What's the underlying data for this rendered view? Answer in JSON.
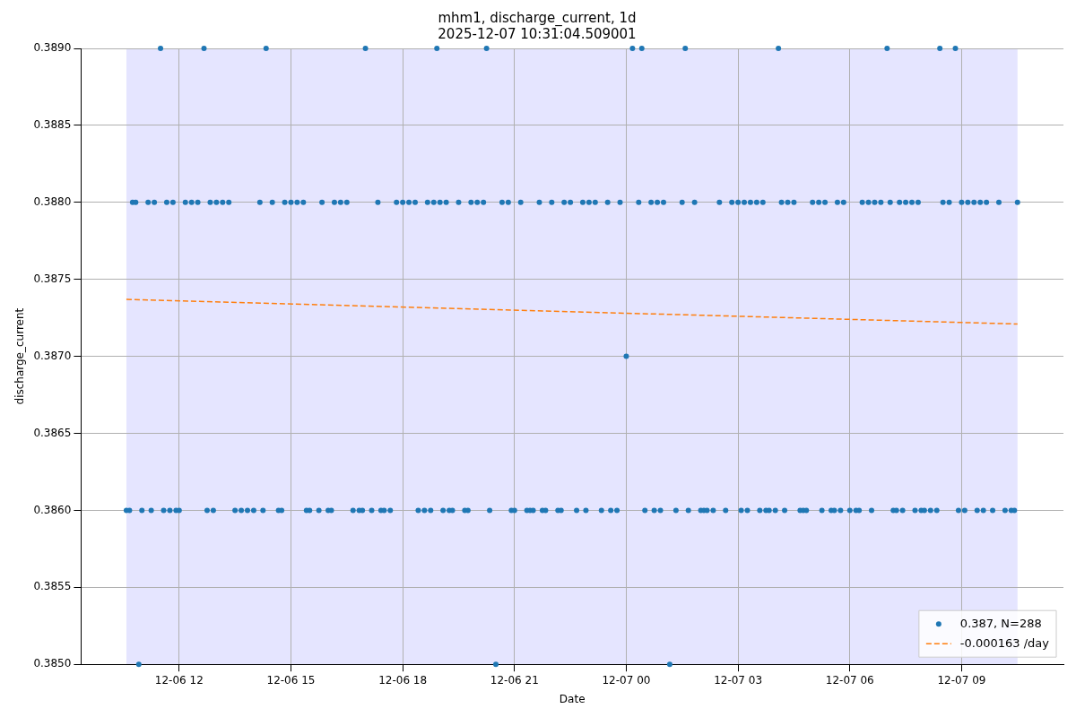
{
  "chart_data": {
    "type": "scatter",
    "title": "mhm1, discharge_current, 1d",
    "subtitle": "2025-12-07 10:31:04.509001",
    "xlabel": "Date",
    "ylabel": "discharge_current",
    "xlim": [
      "2025-12-06T09:22",
      "2025-12-07T11:44"
    ],
    "xticks": [
      {
        "value": "2025-12-06T12:00",
        "label": "12-06 12"
      },
      {
        "value": "2025-12-06T15:00",
        "label": "12-06 15"
      },
      {
        "value": "2025-12-06T18:00",
        "label": "12-06 18"
      },
      {
        "value": "2025-12-06T21:00",
        "label": "12-06 21"
      },
      {
        "value": "2025-12-07T00:00",
        "label": "12-07 00"
      },
      {
        "value": "2025-12-07T03:00",
        "label": "12-07 03"
      },
      {
        "value": "2025-12-07T06:00",
        "label": "12-07 06"
      },
      {
        "value": "2025-12-07T09:00",
        "label": "12-07 09"
      }
    ],
    "ylim": [
      0.385,
      0.389
    ],
    "yticks": [
      {
        "value": 0.385,
        "label": "0.3850"
      },
      {
        "value": 0.3855,
        "label": "0.3855"
      },
      {
        "value": 0.386,
        "label": "0.3860"
      },
      {
        "value": 0.3865,
        "label": "0.3865"
      },
      {
        "value": 0.387,
        "label": "0.3870"
      },
      {
        "value": 0.3875,
        "label": "0.3875"
      },
      {
        "value": 0.388,
        "label": "0.3880"
      },
      {
        "value": 0.3885,
        "label": "0.3885"
      },
      {
        "value": 0.389,
        "label": "0.3890"
      }
    ],
    "grid": true,
    "legend": "bottom right",
    "marker": "circle",
    "bands": [
      {
        "axis": "x",
        "from": "2025-12-06T10:35",
        "to": "2025-12-07T10:30",
        "color": "#e5e5ff"
      }
    ],
    "series": [
      {
        "name": "0.387, N=288",
        "color": "#1f77b4",
        "x": [
          "2025-12-06T11:30",
          "2025-12-06T12:40",
          "2025-12-06T14:20",
          "2025-12-06T17:00",
          "2025-12-06T18:55",
          "2025-12-06T20:15",
          "2025-12-07T00:10",
          "2025-12-07T00:25",
          "2025-12-07T01:35",
          "2025-12-07T04:05",
          "2025-12-07T07:00",
          "2025-12-07T08:25",
          "2025-12-07T08:50",
          "2025-12-06T10:55",
          "2025-12-06T20:30",
          "2025-12-07T01:10",
          "2025-12-07T00:00",
          "2025-12-06T10:35",
          "2025-12-06T10:40",
          "2025-12-06T11:00",
          "2025-12-06T11:15",
          "2025-12-06T11:35",
          "2025-12-06T11:45",
          "2025-12-06T11:55",
          "2025-12-06T12:00",
          "2025-12-06T12:45",
          "2025-12-06T12:55",
          "2025-12-06T13:30",
          "2025-12-06T13:40",
          "2025-12-06T13:50",
          "2025-12-06T14:00",
          "2025-12-06T14:15",
          "2025-12-06T14:40",
          "2025-12-06T14:45",
          "2025-12-06T15:25",
          "2025-12-06T15:30",
          "2025-12-06T15:45",
          "2025-12-06T16:00",
          "2025-12-06T16:05",
          "2025-12-06T16:40",
          "2025-12-06T16:50",
          "2025-12-06T16:55",
          "2025-12-06T17:10",
          "2025-12-06T17:25",
          "2025-12-06T17:30",
          "2025-12-06T17:40",
          "2025-12-06T18:25",
          "2025-12-06T18:35",
          "2025-12-06T18:45",
          "2025-12-06T19:05",
          "2025-12-06T19:15",
          "2025-12-06T19:20",
          "2025-12-06T19:40",
          "2025-12-06T19:45",
          "2025-12-06T20:20",
          "2025-12-06T20:55",
          "2025-12-06T21:00",
          "2025-12-06T21:20",
          "2025-12-06T21:25",
          "2025-12-06T21:30",
          "2025-12-06T21:45",
          "2025-12-06T21:50",
          "2025-12-06T22:10",
          "2025-12-06T22:15",
          "2025-12-06T22:40",
          "2025-12-06T22:55",
          "2025-12-06T23:20",
          "2025-12-06T23:35",
          "2025-12-06T23:45",
          "2025-12-07T00:30",
          "2025-12-07T00:45",
          "2025-12-07T00:55",
          "2025-12-07T01:20",
          "2025-12-07T01:40",
          "2025-12-07T02:00",
          "2025-12-07T02:05",
          "2025-12-07T02:10",
          "2025-12-07T02:20",
          "2025-12-07T02:40",
          "2025-12-07T03:05",
          "2025-12-07T03:15",
          "2025-12-07T03:35",
          "2025-12-07T03:45",
          "2025-12-07T03:50",
          "2025-12-07T04:00",
          "2025-12-07T04:15",
          "2025-12-07T04:40",
          "2025-12-07T04:45",
          "2025-12-07T04:50",
          "2025-12-07T05:15",
          "2025-12-07T05:30",
          "2025-12-07T05:35",
          "2025-12-07T05:45",
          "2025-12-07T06:00",
          "2025-12-07T06:10",
          "2025-12-07T06:15",
          "2025-12-07T06:35",
          "2025-12-07T07:10",
          "2025-12-07T07:15",
          "2025-12-07T07:25",
          "2025-12-07T07:45",
          "2025-12-07T07:55",
          "2025-12-07T08:00",
          "2025-12-07T08:10",
          "2025-12-07T08:20",
          "2025-12-07T08:55",
          "2025-12-07T09:05",
          "2025-12-07T09:25",
          "2025-12-07T09:35",
          "2025-12-07T09:50",
          "2025-12-07T10:10",
          "2025-12-07T10:20",
          "2025-12-07T10:25",
          "2025-12-06T10:45",
          "2025-12-06T10:50",
          "2025-12-06T11:10",
          "2025-12-06T11:20",
          "2025-12-06T11:40",
          "2025-12-06T11:50",
          "2025-12-06T12:10",
          "2025-12-06T12:20",
          "2025-12-06T12:30",
          "2025-12-06T12:50",
          "2025-12-06T13:00",
          "2025-12-06T13:10",
          "2025-12-06T13:20",
          "2025-12-06T14:10",
          "2025-12-06T14:30",
          "2025-12-06T14:50",
          "2025-12-06T15:00",
          "2025-12-06T15:10",
          "2025-12-06T15:20",
          "2025-12-06T15:50",
          "2025-12-06T16:10",
          "2025-12-06T16:20",
          "2025-12-06T16:30",
          "2025-12-06T17:20",
          "2025-12-06T17:50",
          "2025-12-06T18:00",
          "2025-12-06T18:10",
          "2025-12-06T18:20",
          "2025-12-06T18:40",
          "2025-12-06T18:50",
          "2025-12-06T19:00",
          "2025-12-06T19:10",
          "2025-12-06T19:30",
          "2025-12-06T19:50",
          "2025-12-06T20:00",
          "2025-12-06T20:10",
          "2025-12-06T20:40",
          "2025-12-06T20:50",
          "2025-12-06T21:10",
          "2025-12-06T21:40",
          "2025-12-06T22:00",
          "2025-12-06T22:20",
          "2025-12-06T22:30",
          "2025-12-06T22:50",
          "2025-12-06T23:00",
          "2025-12-06T23:10",
          "2025-12-06T23:30",
          "2025-12-06T23:50",
          "2025-12-07T00:20",
          "2025-12-07T00:40",
          "2025-12-07T00:50",
          "2025-12-07T01:00",
          "2025-12-07T01:30",
          "2025-12-07T01:50",
          "2025-12-07T02:30",
          "2025-12-07T02:50",
          "2025-12-07T03:00",
          "2025-12-07T03:10",
          "2025-12-07T03:20",
          "2025-12-07T03:30",
          "2025-12-07T03:40",
          "2025-12-07T04:10",
          "2025-12-07T04:20",
          "2025-12-07T04:30",
          "2025-12-07T05:00",
          "2025-12-07T05:10",
          "2025-12-07T05:20",
          "2025-12-07T05:40",
          "2025-12-07T05:50",
          "2025-12-07T06:20",
          "2025-12-07T06:30",
          "2025-12-07T06:40",
          "2025-12-07T06:50",
          "2025-12-07T07:05",
          "2025-12-07T07:20",
          "2025-12-07T07:30",
          "2025-12-07T07:40",
          "2025-12-07T07:50",
          "2025-12-07T08:30",
          "2025-12-07T08:40",
          "2025-12-07T09:00",
          "2025-12-07T09:10",
          "2025-12-07T09:20",
          "2025-12-07T09:30",
          "2025-12-07T09:40",
          "2025-12-07T10:00",
          "2025-12-07T10:30"
        ],
        "values": [
          0.389,
          0.389,
          0.389,
          0.389,
          0.389,
          0.389,
          0.389,
          0.389,
          0.389,
          0.389,
          0.389,
          0.389,
          0.389,
          0.385,
          0.385,
          0.385,
          0.387,
          0.386,
          0.386,
          0.386,
          0.386,
          0.386,
          0.386,
          0.386,
          0.386,
          0.386,
          0.386,
          0.386,
          0.386,
          0.386,
          0.386,
          0.386,
          0.386,
          0.386,
          0.386,
          0.386,
          0.386,
          0.386,
          0.386,
          0.386,
          0.386,
          0.386,
          0.386,
          0.386,
          0.386,
          0.386,
          0.386,
          0.386,
          0.386,
          0.386,
          0.386,
          0.386,
          0.386,
          0.386,
          0.386,
          0.386,
          0.386,
          0.386,
          0.386,
          0.386,
          0.386,
          0.386,
          0.386,
          0.386,
          0.386,
          0.386,
          0.386,
          0.386,
          0.386,
          0.386,
          0.386,
          0.386,
          0.386,
          0.386,
          0.386,
          0.386,
          0.386,
          0.386,
          0.386,
          0.386,
          0.386,
          0.386,
          0.386,
          0.386,
          0.386,
          0.386,
          0.386,
          0.386,
          0.386,
          0.386,
          0.386,
          0.386,
          0.386,
          0.386,
          0.386,
          0.386,
          0.386,
          0.386,
          0.386,
          0.386,
          0.386,
          0.386,
          0.386,
          0.386,
          0.386,
          0.386,
          0.386,
          0.386,
          0.386,
          0.386,
          0.386,
          0.386,
          0.386,
          0.388,
          0.388,
          0.388,
          0.388,
          0.388,
          0.388,
          0.388,
          0.388,
          0.388,
          0.388,
          0.388,
          0.388,
          0.388,
          0.388,
          0.388,
          0.388,
          0.388,
          0.388,
          0.388,
          0.388,
          0.388,
          0.388,
          0.388,
          0.388,
          0.388,
          0.388,
          0.388,
          0.388,
          0.388,
          0.388,
          0.388,
          0.388,
          0.388,
          0.388,
          0.388,
          0.388,
          0.388,
          0.388,
          0.388,
          0.388,
          0.388,
          0.388,
          0.388,
          0.388,
          0.388,
          0.388,
          0.388,
          0.388,
          0.388,
          0.388,
          0.388,
          0.388,
          0.388,
          0.388,
          0.388,
          0.388,
          0.388,
          0.388,
          0.388,
          0.388,
          0.388,
          0.388,
          0.388,
          0.388,
          0.388,
          0.388,
          0.388,
          0.388,
          0.388,
          0.388,
          0.388,
          0.388,
          0.388,
          0.388,
          0.388,
          0.388,
          0.388,
          0.388,
          0.388,
          0.388,
          0.388,
          0.388,
          0.388,
          0.388,
          0.388,
          0.388,
          0.388
        ]
      },
      {
        "name": "-0.000163 /day",
        "type": "line",
        "color": "#ff7f0e",
        "marker": "none",
        "line_style": "dashed",
        "x": [
          "2025-12-06T10:35",
          "2025-12-07T10:30"
        ],
        "values": [
          0.38737,
          0.38721
        ]
      }
    ]
  }
}
